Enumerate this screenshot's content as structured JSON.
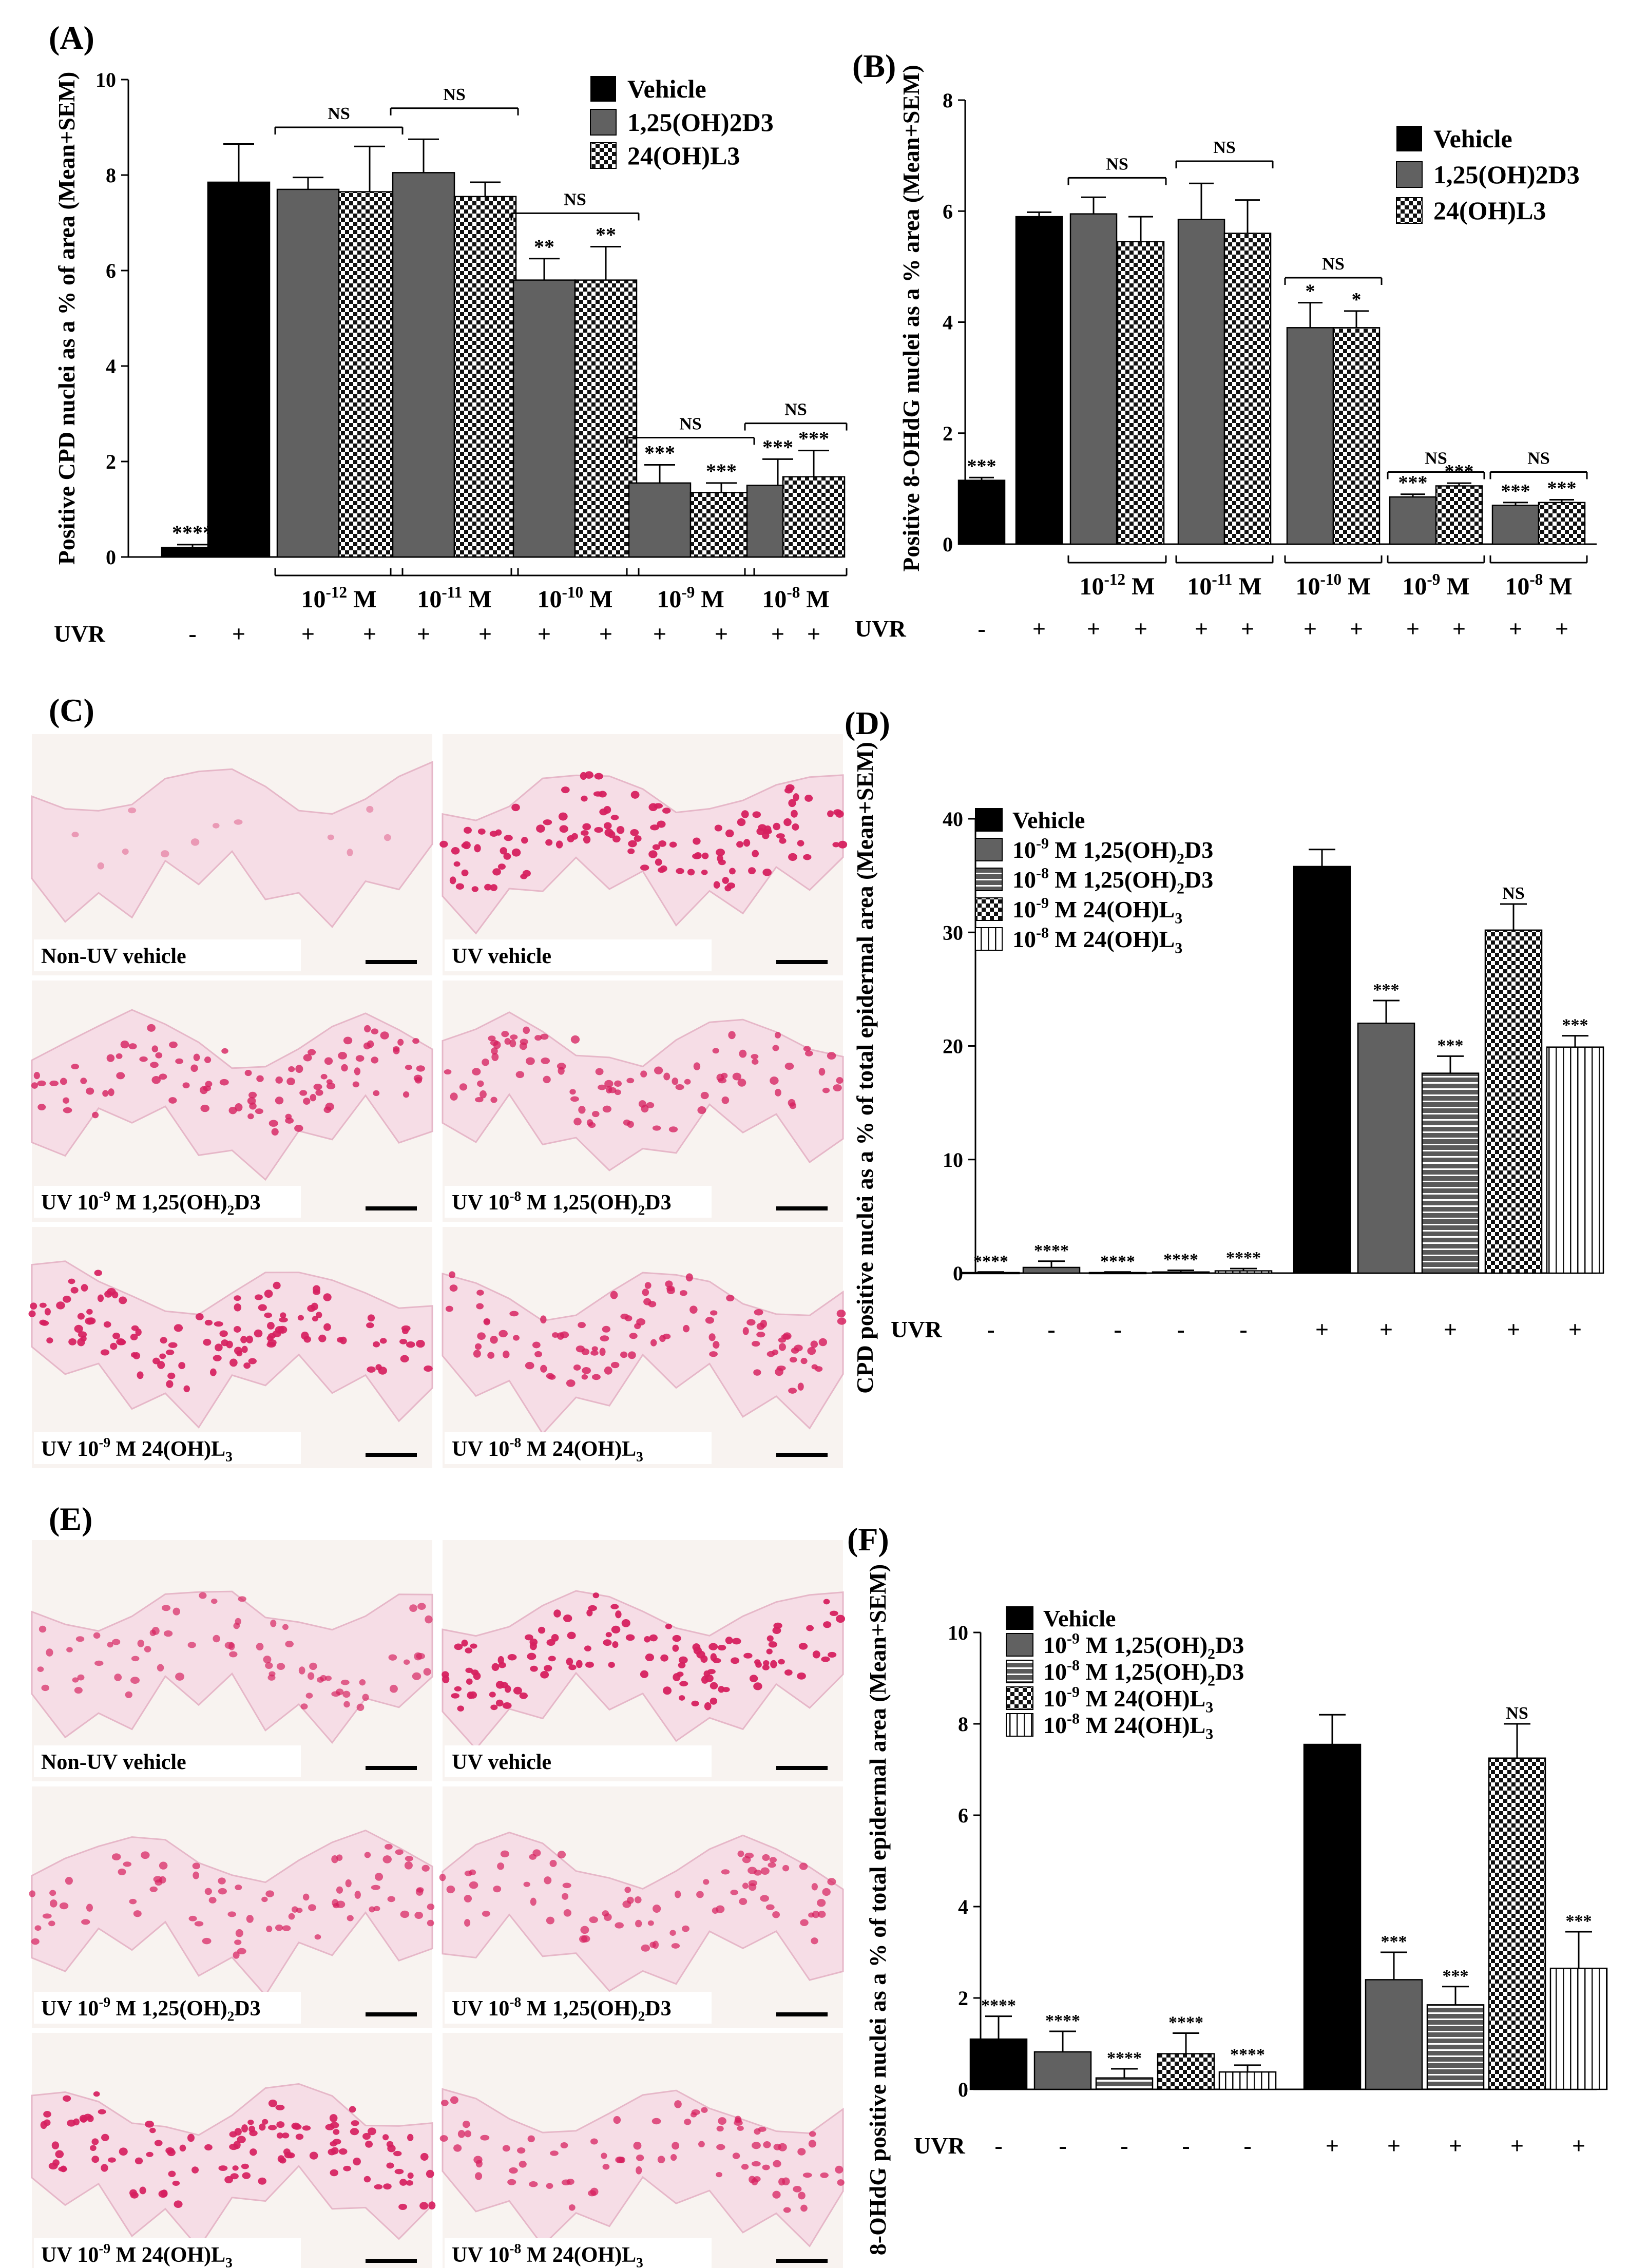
{
  "colors": {
    "vehicle": "#000000",
    "calcitriol": "#616161",
    "lumisterol": "checker",
    "tissue_bg": "#f7f1ee",
    "nuclei": "#d6205f"
  },
  "legend_common": {
    "vehicle": "Vehicle",
    "d3": "1,25(OH)2D3",
    "l3": "24(OH)L3"
  },
  "legend_dose": {
    "vehicle": "Vehicle",
    "d3_9": "10-9 M 1,25(OH)2D3",
    "d3_8": "10-8 M 1,25(OH)2D3",
    "l3_9": "10-9 M 24(OH)L3",
    "l3_8": "10-8 M 24(OH)L3"
  },
  "uvr_label": "UVR",
  "micrographs": [
    {
      "panel": "(C)",
      "labels": [
        "Non-UV vehicle",
        "UV vehicle",
        "UV 10-9 M 1,25(OH)2D3",
        "UV 10-8 M 1,25(OH)2D3",
        "UV 10-9 M 24(OH)L3",
        "UV 10-8 M 24(OH)L3"
      ],
      "density": [
        0.02,
        1,
        0.75,
        0.7,
        0.95,
        0.8
      ]
    },
    {
      "panel": "(E)",
      "labels": [
        "Non-UV vehicle",
        "UV vehicle",
        "UV 10-9 M 1,25(OH)2D3",
        "UV 10-8 M 1,25(OH)2D3",
        "UV 10-9 M 24(OH)L3",
        "UV 10-8 M 24(OH)L3"
      ],
      "density": [
        0.55,
        1,
        0.6,
        0.6,
        0.95,
        0.65
      ]
    }
  ],
  "chart_data": [
    {
      "panel": "(A)",
      "type": "bar",
      "ylabel": "Positive CPD nuclei as a % of area (Mean+SEM)",
      "ylim": [
        0,
        10
      ],
      "yticks": [
        0,
        2,
        4,
        6,
        8,
        10
      ],
      "series_legend": [
        "Vehicle",
        "1,25(OH)2D3",
        "24(OH)L3"
      ],
      "bars": [
        {
          "series": "vehicle",
          "value": 0.2,
          "err": 0.06,
          "sig": "****",
          "uvr": "-"
        },
        {
          "series": "vehicle",
          "value": 7.85,
          "err": 0.8,
          "sig": "",
          "uvr": "+"
        },
        {
          "series": "d3",
          "value": 7.7,
          "err": 0.25,
          "sig": "",
          "uvr": "+"
        },
        {
          "series": "l3",
          "value": 7.65,
          "err": 0.95,
          "sig": "",
          "uvr": "+"
        },
        {
          "series": "d3",
          "value": 8.05,
          "err": 0.7,
          "sig": "",
          "uvr": "+"
        },
        {
          "series": "l3",
          "value": 7.55,
          "err": 0.3,
          "sig": "",
          "uvr": "+"
        },
        {
          "series": "d3",
          "value": 5.8,
          "err": 0.45,
          "sig": "**",
          "uvr": "+"
        },
        {
          "series": "l3",
          "value": 5.8,
          "err": 0.7,
          "sig": "**",
          "uvr": "+"
        },
        {
          "series": "d3",
          "value": 1.55,
          "err": 0.38,
          "sig": "***",
          "uvr": "+"
        },
        {
          "series": "l3",
          "value": 1.35,
          "err": 0.2,
          "sig": "***",
          "uvr": "+"
        },
        {
          "series": "d3",
          "value": 1.5,
          "err": 0.55,
          "sig": "***",
          "uvr": "+"
        },
        {
          "series": "l3",
          "value": 1.68,
          "err": 0.55,
          "sig": "***",
          "uvr": "+"
        }
      ],
      "groups": [
        {
          "bars": [
            2,
            3
          ],
          "label": "10-12 M",
          "ns": "NS",
          "ns_level": 9.0
        },
        {
          "bars": [
            4,
            5
          ],
          "label": "10-11 M",
          "ns": "NS",
          "ns_level": 9.4
        },
        {
          "bars": [
            6,
            7
          ],
          "label": "10-10 M",
          "ns": "NS",
          "ns_level": 7.2
        },
        {
          "bars": [
            8,
            9
          ],
          "label": "10-9 M",
          "ns": "NS",
          "ns_level": 2.5
        },
        {
          "bars": [
            10,
            11
          ],
          "label": "10-8 M",
          "ns": "NS",
          "ns_level": 2.8
        }
      ]
    },
    {
      "panel": "(B)",
      "type": "bar",
      "ylabel": "Positive 8-OHdG nuclei as a % area (Mean+SEM)",
      "ylim": [
        0,
        8
      ],
      "yticks": [
        0,
        2,
        4,
        6,
        8
      ],
      "series_legend": [
        "Vehicle",
        "1,25(OH)2D3",
        "24(OH)L3"
      ],
      "bars": [
        {
          "series": "vehicle",
          "value": 1.15,
          "err": 0.05,
          "sig": "***",
          "uvr": "-"
        },
        {
          "series": "vehicle",
          "value": 5.9,
          "err": 0.08,
          "sig": "",
          "uvr": "+"
        },
        {
          "series": "d3",
          "value": 5.95,
          "err": 0.3,
          "sig": "",
          "uvr": "+"
        },
        {
          "series": "l3",
          "value": 5.45,
          "err": 0.45,
          "sig": "",
          "uvr": "+"
        },
        {
          "series": "d3",
          "value": 5.85,
          "err": 0.65,
          "sig": "",
          "uvr": "+"
        },
        {
          "series": "l3",
          "value": 5.6,
          "err": 0.6,
          "sig": "",
          "uvr": "+"
        },
        {
          "series": "d3",
          "value": 3.9,
          "err": 0.45,
          "sig": "*",
          "uvr": "+"
        },
        {
          "series": "l3",
          "value": 3.9,
          "err": 0.3,
          "sig": "*",
          "uvr": "+"
        },
        {
          "series": "d3",
          "value": 0.85,
          "err": 0.05,
          "sig": "***",
          "uvr": "+"
        },
        {
          "series": "l3",
          "value": 1.05,
          "err": 0.05,
          "sig": "***",
          "uvr": "+"
        },
        {
          "series": "d3",
          "value": 0.7,
          "err": 0.05,
          "sig": "***",
          "uvr": "+"
        },
        {
          "series": "l3",
          "value": 0.75,
          "err": 0.05,
          "sig": "***",
          "uvr": "+"
        }
      ],
      "groups": [
        {
          "bars": [
            2,
            3
          ],
          "label": "10-12 M",
          "ns": "NS",
          "ns_level": 6.6
        },
        {
          "bars": [
            4,
            5
          ],
          "label": "10-11 M",
          "ns": "NS",
          "ns_level": 6.9
        },
        {
          "bars": [
            6,
            7
          ],
          "label": "10-10 M",
          "ns": "NS",
          "ns_level": 4.8
        },
        {
          "bars": [
            8,
            9
          ],
          "label": "10-9 M",
          "ns": "NS",
          "ns_level": 1.3
        },
        {
          "bars": [
            10,
            11
          ],
          "label": "10-8 M",
          "ns": "NS",
          "ns_level": 1.3
        }
      ]
    },
    {
      "panel": "(D)",
      "type": "bar",
      "ylabel": "CPD positive nuclei as a % of total epidermal area (Mean+SEM)",
      "ylim": [
        0,
        40
      ],
      "yticks": [
        0,
        10,
        20,
        30,
        40
      ],
      "series_legend": [
        "Vehicle",
        "10-9 M 1,25(OH)2D3",
        "10-8 M 1,25(OH)2D3",
        "10-9 M 24(OH)L3",
        "10-8 M 24(OH)L3"
      ],
      "bars": [
        {
          "series": "vehicle",
          "value": 0.05,
          "err": 0.05,
          "sig": "****",
          "uvr": "-"
        },
        {
          "series": "d3_9",
          "value": 0.5,
          "err": 0.55,
          "sig": "****",
          "uvr": "-"
        },
        {
          "series": "d3_8",
          "value": 0.05,
          "err": 0.05,
          "sig": "****",
          "uvr": "-"
        },
        {
          "series": "l3_9",
          "value": 0.1,
          "err": 0.15,
          "sig": "****",
          "uvr": "-"
        },
        {
          "series": "l3_8",
          "value": 0.2,
          "err": 0.2,
          "sig": "****",
          "uvr": "-"
        },
        {
          "series": "vehicle",
          "value": 35.8,
          "err": 1.5,
          "sig": "",
          "uvr": "+"
        },
        {
          "series": "d3_9",
          "value": 22,
          "err": 2.0,
          "sig": "***",
          "uvr": "+"
        },
        {
          "series": "d3_8",
          "value": 17.6,
          "err": 1.5,
          "sig": "***",
          "uvr": "+"
        },
        {
          "series": "l3_9",
          "value": 30.2,
          "err": 2.3,
          "sig": "NS",
          "uvr": "+"
        },
        {
          "series": "l3_8",
          "value": 19.9,
          "err": 1.0,
          "sig": "***",
          "uvr": "+"
        }
      ],
      "groups": []
    },
    {
      "panel": "(F)",
      "type": "bar",
      "ylabel": "8-OHdG positive nuclei as a % of total epidermal area (Mean+SEM)",
      "ylim": [
        0,
        10
      ],
      "yticks": [
        0,
        2,
        4,
        6,
        8,
        10
      ],
      "series_legend": [
        "Vehicle",
        "10-9 M 1,25(OH)2D3",
        "10-8 M 1,25(OH)2D3",
        "10-9 M 24(OH)L3",
        "10-8 M 24(OH)L3"
      ],
      "bars": [
        {
          "series": "vehicle",
          "value": 1.1,
          "err": 0.5,
          "sig": "****",
          "uvr": "-"
        },
        {
          "series": "d3_9",
          "value": 0.82,
          "err": 0.45,
          "sig": "****",
          "uvr": "-"
        },
        {
          "series": "d3_8",
          "value": 0.25,
          "err": 0.2,
          "sig": "****",
          "uvr": "-"
        },
        {
          "series": "l3_9",
          "value": 0.78,
          "err": 0.45,
          "sig": "****",
          "uvr": "-"
        },
        {
          "series": "l3_8",
          "value": 0.38,
          "err": 0.15,
          "sig": "****",
          "uvr": "-"
        },
        {
          "series": "vehicle",
          "value": 7.55,
          "err": 0.65,
          "sig": "",
          "uvr": "+"
        },
        {
          "series": "d3_9",
          "value": 2.4,
          "err": 0.6,
          "sig": "***",
          "uvr": "+"
        },
        {
          "series": "d3_8",
          "value": 1.85,
          "err": 0.4,
          "sig": "***",
          "uvr": "+"
        },
        {
          "series": "l3_9",
          "value": 7.25,
          "err": 0.75,
          "sig": "NS",
          "uvr": "+"
        },
        {
          "series": "l3_8",
          "value": 2.65,
          "err": 0.8,
          "sig": "***",
          "uvr": "+"
        }
      ],
      "groups": []
    }
  ]
}
